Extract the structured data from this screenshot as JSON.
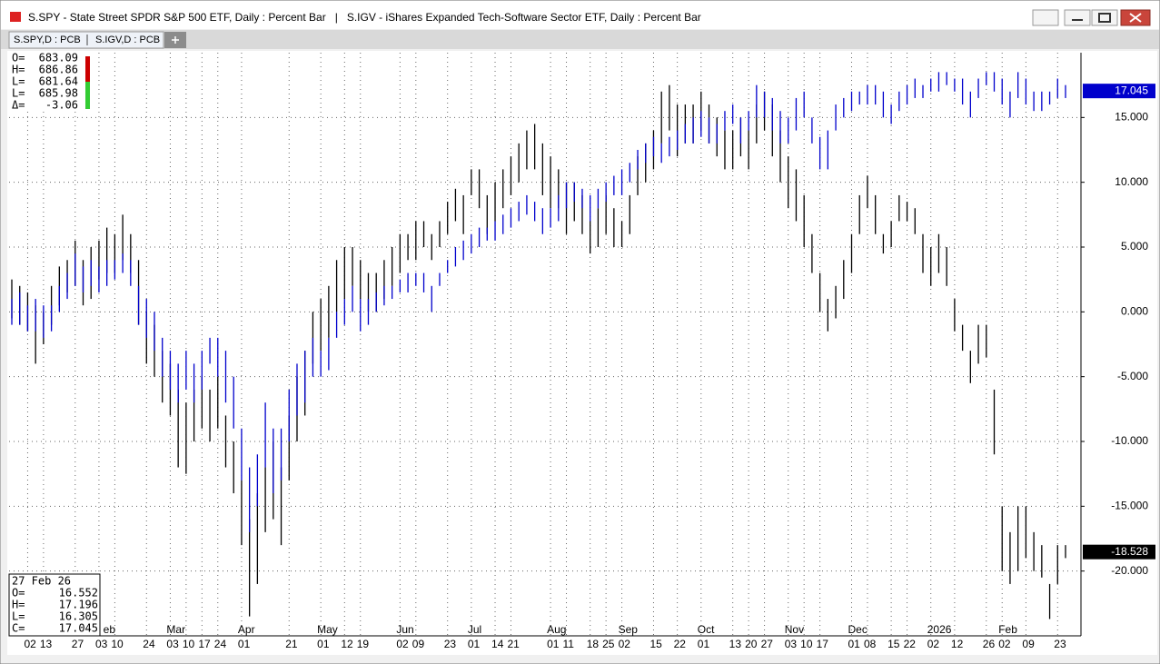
{
  "window": {
    "title": "S.SPY - State Street SPDR S&P 500 ETF, Daily : Percent Bar   |   S.IGV - iShares Expanded Tech-Software Sector ETF, Daily : Percent Bar",
    "info": [
      {
        "label": "O=",
        "value": 683.09
      },
      {
        "label": "H=",
        "value": 686.86
      },
      {
        "label": "L=",
        "value": 681.64
      },
      {
        "label": "L=",
        "value": 685.98
      },
      {
        "label": "Δ=",
        "value": -3.06
      }
    ],
    "status": {
      "date": "27 Feb 26",
      "rows": [
        {
          "label": "O=",
          "value": 16.552
        },
        {
          "label": "H=",
          "value": 17.196
        },
        {
          "label": "L=",
          "value": 16.305
        },
        {
          "label": "C=",
          "value": 17.045
        }
      ]
    }
  },
  "chart_data": {
    "type": "range-bar",
    "categories": [
      null,
      null,
      "02",
      null,
      "13",
      null,
      null,
      null,
      "27",
      null,
      null,
      "03",
      null,
      "10",
      null,
      null,
      null,
      "24",
      null,
      null,
      "03",
      null,
      "10",
      null,
      "17",
      null,
      "24",
      null,
      null,
      "01",
      null,
      null,
      null,
      null,
      null,
      "21",
      null,
      null,
      null,
      "01",
      null,
      null,
      "12",
      null,
      "19",
      null,
      null,
      null,
      null,
      "02",
      null,
      "09",
      null,
      null,
      null,
      "23",
      null,
      null,
      "01",
      null,
      null,
      "14",
      null,
      "21",
      null,
      null,
      null,
      null,
      "01",
      null,
      "11",
      null,
      null,
      "18",
      null,
      "25",
      null,
      "02",
      null,
      null,
      null,
      "15",
      null,
      null,
      "22",
      null,
      null,
      "01",
      null,
      null,
      null,
      "13",
      null,
      "20",
      null,
      "27",
      null,
      null,
      "03",
      null,
      "10",
      null,
      "17",
      null,
      null,
      null,
      "01",
      null,
      "08",
      null,
      null,
      "15",
      null,
      "22",
      null,
      null,
      "02",
      null,
      null,
      "12",
      null,
      null,
      null,
      "26",
      null,
      "02",
      null,
      null,
      "09",
      null,
      null,
      null,
      "23",
      null
    ],
    "months": [
      null,
      null,
      null,
      null,
      null,
      null,
      null,
      null,
      null,
      null,
      null,
      null,
      "eb",
      null,
      null,
      null,
      null,
      null,
      null,
      null,
      "Mar",
      null,
      null,
      null,
      null,
      null,
      null,
      null,
      null,
      "Apr",
      null,
      null,
      null,
      null,
      null,
      null,
      null,
      null,
      null,
      "May",
      null,
      null,
      null,
      null,
      null,
      null,
      null,
      null,
      null,
      "Jun",
      null,
      null,
      null,
      null,
      null,
      null,
      null,
      null,
      "Jul",
      null,
      null,
      null,
      null,
      null,
      null,
      null,
      null,
      null,
      "Aug",
      null,
      null,
      null,
      null,
      null,
      null,
      null,
      null,
      "Sep",
      null,
      null,
      null,
      null,
      null,
      null,
      null,
      null,
      null,
      "Oct",
      null,
      null,
      null,
      null,
      null,
      null,
      null,
      null,
      null,
      null,
      "Nov",
      null,
      null,
      null,
      null,
      null,
      null,
      null,
      "Dec",
      null,
      null,
      null,
      null,
      null,
      null,
      null,
      null,
      null,
      "2026",
      null,
      null,
      null,
      null,
      null,
      null,
      null,
      null,
      "Feb",
      null,
      null,
      null,
      null,
      null,
      null,
      null,
      null
    ],
    "series": [
      {
        "name": "S.SPY,D : PCB",
        "color": "#000000",
        "last": -18.528,
        "high": [
          2.5,
          2,
          1.5,
          0.5,
          0,
          2,
          3.5,
          4,
          5.5,
          4,
          5,
          5.5,
          6.5,
          6,
          7.5,
          6,
          4,
          0,
          -1,
          -3,
          -4,
          -6,
          -7,
          -6,
          -5,
          -6,
          -5,
          -8,
          -10,
          -13,
          -16,
          -14,
          -12,
          -10,
          -12,
          -8,
          -5,
          -3,
          0,
          1,
          2,
          4,
          5,
          5,
          4,
          3,
          3,
          4,
          5,
          6,
          6,
          7,
          7,
          6,
          7,
          8.5,
          9.5,
          9,
          11,
          11,
          9,
          10,
          11,
          12,
          13,
          14,
          14.5,
          13,
          12,
          11,
          10,
          10,
          9,
          7,
          8,
          9,
          8,
          7,
          9,
          12,
          13,
          14,
          17,
          17.5,
          16,
          16,
          16,
          17,
          16,
          15,
          14,
          14,
          15,
          14,
          16,
          17,
          16,
          14,
          12,
          11,
          9,
          6,
          3,
          1,
          2,
          4,
          6,
          9,
          10.5,
          9,
          6,
          7,
          9,
          8.5,
          8,
          6,
          5,
          6,
          5,
          1,
          -1,
          -3,
          -1,
          -1,
          -6,
          -15,
          -17,
          -15,
          -15,
          -17,
          -18,
          -21,
          -18,
          -18
        ],
        "low": [
          -0.5,
          -1,
          -1.5,
          -4,
          -2.5,
          -1,
          0.5,
          1.5,
          2,
          0.5,
          1,
          2.5,
          3,
          3,
          4,
          3,
          -1,
          -4,
          -5,
          -7,
          -8,
          -12,
          -12.5,
          -10,
          -9,
          -10,
          -9,
          -12,
          -14,
          -18,
          -23.5,
          -21,
          -17,
          -16,
          -18,
          -13,
          -10,
          -8,
          -4,
          -3,
          -2,
          0,
          1,
          2,
          1,
          0,
          0,
          1,
          2,
          3,
          4,
          4,
          5,
          4,
          5,
          6,
          7,
          6,
          9,
          8,
          6,
          7,
          8,
          9,
          10,
          11,
          11,
          9,
          8,
          8,
          6,
          7,
          6,
          4.5,
          5,
          6,
          5,
          5,
          6,
          9,
          10,
          11,
          13,
          14,
          12,
          13,
          13,
          14,
          13,
          12,
          11,
          11,
          12,
          11,
          13,
          14,
          12,
          10,
          8,
          7,
          5,
          3,
          0,
          -1.5,
          -0.5,
          1,
          3,
          6,
          8,
          6,
          4.5,
          5,
          7,
          7,
          6,
          3,
          2,
          3,
          2,
          -1.5,
          -3,
          -5.5,
          -4,
          -3.5,
          -11,
          -20,
          -21,
          -20,
          -19,
          -20,
          -20.5,
          -23.7,
          -21,
          -19
        ]
      },
      {
        "name": "S.IGV,D : PCB",
        "color": "#0000cc",
        "last": 17.045,
        "high": [
          1,
          1.5,
          0.5,
          1,
          0.5,
          0.5,
          2,
          3,
          4.5,
          3.5,
          4,
          3.5,
          4,
          4,
          4.5,
          4,
          2,
          1,
          0,
          -2,
          -3,
          -4,
          -3,
          -4,
          -3,
          -2,
          -2,
          -3,
          -5,
          -9,
          -12,
          -11,
          -7,
          -9,
          -9,
          -6,
          -4,
          -3,
          -2,
          -3,
          -2,
          0,
          1,
          2,
          1,
          1,
          1.5,
          2,
          2,
          2.5,
          3,
          3,
          3,
          2,
          3,
          4,
          5,
          5.5,
          6,
          6.5,
          6.5,
          7,
          7.5,
          8,
          8.5,
          9,
          8.5,
          8,
          8,
          9,
          10,
          10,
          9.5,
          9,
          9.5,
          10,
          10.5,
          11,
          11.5,
          12.5,
          13,
          13.5,
          13,
          13.5,
          14,
          14.5,
          15,
          15.5,
          15,
          14.5,
          15.5,
          16,
          15,
          15.5,
          17.5,
          17,
          16.5,
          15.5,
          15,
          16.5,
          17,
          15,
          13.5,
          14,
          16,
          16.5,
          17,
          17,
          17.5,
          17.5,
          17,
          16,
          17,
          17.5,
          18,
          17.5,
          18,
          18.5,
          18.5,
          18,
          18,
          17,
          18,
          18.5,
          18.5,
          18,
          17,
          18.5,
          18,
          17,
          17,
          17,
          18,
          17.5
        ],
        "low": [
          -1,
          -1,
          -1.5,
          -1.5,
          -2,
          -1.5,
          0,
          1,
          2,
          1.5,
          2,
          1.5,
          2,
          2.5,
          3,
          2,
          -1,
          -2,
          -3,
          -5,
          -6,
          -7,
          -6,
          -7,
          -6,
          -4,
          -5,
          -7,
          -9,
          -13,
          -17,
          -15,
          -12,
          -14,
          -13,
          -10,
          -8,
          -7,
          -5,
          -5,
          -4.5,
          -2,
          -1,
          0,
          -1.5,
          -1,
          0,
          0.5,
          1,
          1.5,
          1.5,
          2,
          1.5,
          0,
          2,
          3,
          3.5,
          4,
          4.5,
          5,
          5.5,
          5.5,
          6,
          6.5,
          7,
          7.5,
          7,
          6,
          6.5,
          7,
          8,
          8.5,
          8,
          7,
          8,
          8.5,
          9,
          9,
          10,
          11,
          11.5,
          12,
          11.5,
          12,
          12.5,
          13,
          13,
          13.5,
          13,
          13,
          14,
          14.5,
          13,
          14,
          15,
          15,
          14,
          13,
          13,
          14,
          15,
          13,
          11,
          11,
          14,
          15,
          15.5,
          16,
          16,
          16,
          15,
          14.5,
          15.5,
          16,
          16.5,
          16.5,
          17,
          17,
          17.5,
          17,
          16,
          15,
          16.5,
          17.5,
          17,
          16,
          15,
          16.5,
          16,
          15.5,
          15.5,
          16,
          16.5,
          16.5
        ]
      }
    ],
    "ylim": [
      -25,
      20
    ],
    "yticks": [
      {
        "value": 15,
        "label": "15.000"
      },
      {
        "value": 10,
        "label": "10.000"
      },
      {
        "value": 5,
        "label": "5.000"
      },
      {
        "value": 0,
        "label": "0.000"
      },
      {
        "value": -5,
        "label": "-5.000"
      },
      {
        "value": -10,
        "label": "-10.000"
      },
      {
        "value": -15,
        "label": "-15.000"
      },
      {
        "value": -20,
        "label": "-20.000"
      }
    ],
    "grid": true
  }
}
